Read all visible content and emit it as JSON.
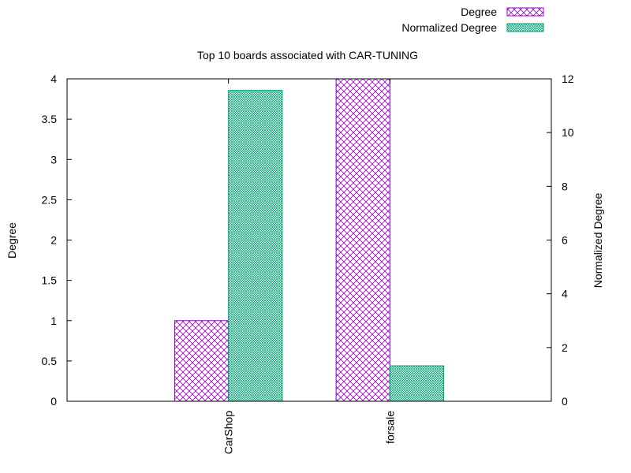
{
  "chart_data": {
    "type": "bar",
    "title": "Top 10 boards associated with CAR-TUNING",
    "categories": [
      "CarShop",
      "forsale"
    ],
    "series": [
      {
        "name": "Degree",
        "axis": "left",
        "color": "#9400d3",
        "values": [
          1,
          4
        ]
      },
      {
        "name": "Normalized Degree",
        "axis": "right",
        "color": "#009e73",
        "values": [
          11.57,
          1.32
        ]
      }
    ],
    "ylabel": "Degree",
    "y2label": "Normalized Degree",
    "ylim": [
      0,
      4
    ],
    "y2lim": [
      0,
      12
    ],
    "yticks": [
      "0",
      "0.5",
      "1",
      "1.5",
      "2",
      "2.5",
      "3",
      "3.5",
      "4"
    ],
    "y2ticks": [
      "0",
      "2",
      "4",
      "6",
      "8",
      "10",
      "12"
    ],
    "legend_position": "top-right",
    "grid": false
  }
}
